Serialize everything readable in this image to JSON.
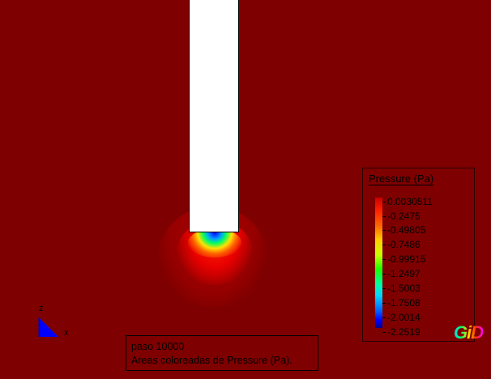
{
  "legend": {
    "title": "Pressure (Pa)",
    "ticks": [
      "0.0030511",
      "-0.2475",
      "-0.49805",
      "-0.7486",
      "-0.99915",
      "-1.2497",
      "-1.5003",
      "-1.7508",
      "-2.0014",
      "-2.2519"
    ]
  },
  "info": {
    "step": "paso 10000",
    "description": "Areas coloreadas de Pressure (Pa)."
  },
  "axes": {
    "z_label": "z",
    "x_label": "x"
  },
  "logo": {
    "text": "GiD"
  },
  "colors": {
    "background": "#7f0000",
    "body": "#ffffff"
  }
}
